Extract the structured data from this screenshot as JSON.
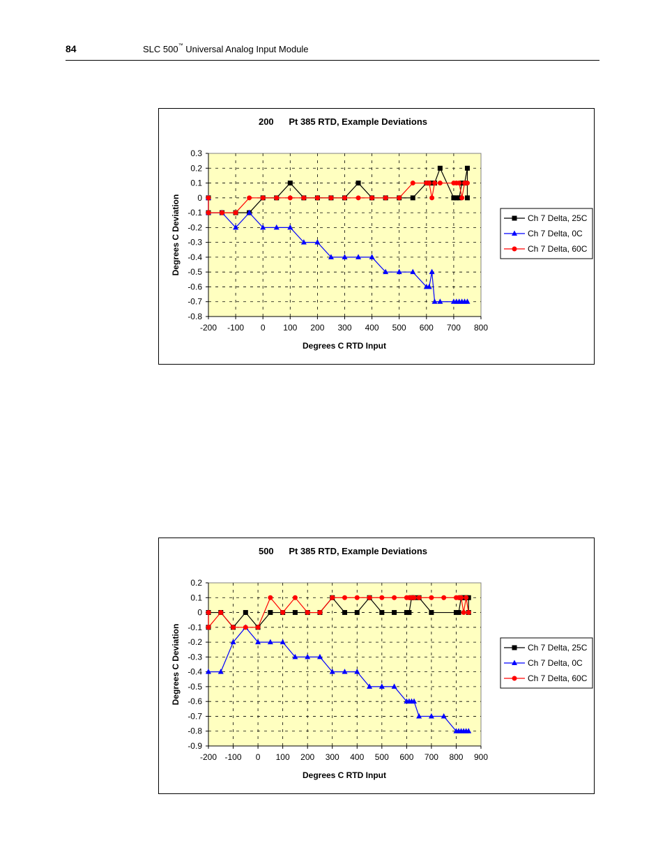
{
  "page": {
    "number": "84",
    "running_head": "SLC 500",
    "running_head_tm": "™",
    "running_head_rest": " Universal Analog Input Module"
  },
  "chart_data": [
    {
      "type": "line",
      "title": "200      Pt 385 RTD, Example Deviations",
      "xlabel": "Degrees C RTD Input",
      "ylabel": "Degrees C Deviation",
      "xlim": [
        -200,
        800
      ],
      "ylim": [
        -0.8,
        0.3
      ],
      "xticks": [
        -200,
        -100,
        0,
        100,
        200,
        300,
        400,
        500,
        600,
        700,
        800
      ],
      "yticks": [
        0.3,
        0.2,
        0.1,
        0,
        -0.1,
        -0.2,
        -0.3,
        -0.4,
        -0.5,
        -0.6,
        -0.7,
        -0.8
      ],
      "xtick_labels": [
        "-200",
        "-100",
        "0",
        "100",
        "200",
        "300",
        "400",
        "500",
        "600",
        "700",
        "800"
      ],
      "ytick_labels": [
        "0.3",
        "0.2",
        "0.1",
        "0",
        "-0.1",
        "-0.2",
        "-0.3",
        "-0.4",
        "-0.5",
        "-0.6",
        "-0.7",
        "-0.8"
      ],
      "grid": true,
      "legend_position": "right",
      "plot_background": "#ffffc0",
      "series": [
        {
          "name": "Ch 7 Delta, 25C",
          "color": "#000000",
          "marker": "square",
          "x": [
            -200,
            -200,
            -150,
            -100,
            -50,
            0,
            50,
            100,
            150,
            200,
            250,
            300,
            350,
            400,
            450,
            500,
            550,
            600,
            610,
            620,
            630,
            650,
            700,
            710,
            720,
            730,
            740,
            750,
            750
          ],
          "y": [
            0,
            -0.1,
            -0.1,
            -0.1,
            -0.1,
            0,
            0,
            0.1,
            0,
            0,
            0,
            0,
            0.1,
            0,
            0,
            0,
            0,
            0.1,
            0.1,
            0.1,
            0.1,
            0.2,
            0,
            0,
            0,
            0.1,
            0.1,
            0.2,
            0
          ]
        },
        {
          "name": "Ch 7 Delta, 0C",
          "color": "#0000ff",
          "marker": "triangle",
          "x": [
            -200,
            -200,
            -150,
            -100,
            -50,
            0,
            50,
            100,
            150,
            200,
            250,
            300,
            350,
            400,
            450,
            500,
            550,
            600,
            610,
            620,
            630,
            650,
            700,
            710,
            720,
            730,
            740,
            750
          ],
          "y": [
            0,
            -0.1,
            -0.1,
            -0.2,
            -0.1,
            -0.2,
            -0.2,
            -0.2,
            -0.3,
            -0.3,
            -0.4,
            -0.4,
            -0.4,
            -0.4,
            -0.5,
            -0.5,
            -0.5,
            -0.6,
            -0.6,
            -0.5,
            -0.7,
            -0.7,
            -0.7,
            -0.7,
            -0.7,
            -0.7,
            -0.7,
            -0.7
          ]
        },
        {
          "name": "Ch 7 Delta, 60C",
          "color": "#ff0000",
          "marker": "circle",
          "x": [
            -200,
            -200,
            -150,
            -100,
            -50,
            0,
            50,
            100,
            150,
            200,
            250,
            300,
            350,
            400,
            450,
            500,
            550,
            600,
            610,
            620,
            630,
            650,
            700,
            710,
            720,
            730,
            740,
            750
          ],
          "y": [
            0,
            -0.1,
            -0.1,
            -0.1,
            0,
            0,
            0,
            0,
            0,
            0,
            0,
            0,
            0,
            0,
            0,
            0,
            0.1,
            0.1,
            0.1,
            0,
            0.1,
            0.1,
            0.1,
            0.1,
            0.1,
            0,
            0.1,
            0.1
          ]
        }
      ]
    },
    {
      "type": "line",
      "title": "500      Pt 385 RTD, Example Deviations",
      "xlabel": "Degrees C RTD Input",
      "ylabel": "Degrees C Deviation",
      "xlim": [
        -200,
        900
      ],
      "ylim": [
        -0.9,
        0.2
      ],
      "xticks": [
        -200,
        -100,
        0,
        100,
        200,
        300,
        400,
        500,
        600,
        700,
        800,
        900
      ],
      "yticks": [
        0.2,
        0.1,
        0,
        -0.1,
        -0.2,
        -0.3,
        -0.4,
        -0.5,
        -0.6,
        -0.7,
        -0.8,
        -0.9
      ],
      "xtick_labels": [
        "-200",
        "-100",
        "0",
        "100",
        "200",
        "300",
        "400",
        "500",
        "600",
        "700",
        "800",
        "900"
      ],
      "ytick_labels": [
        "0.2",
        "0.1",
        "0",
        "-0.1",
        "-0.2",
        "-0.3",
        "-0.4",
        "-0.5",
        "-0.6",
        "-0.7",
        "-0.8",
        "-0.9"
      ],
      "grid": true,
      "legend_position": "right",
      "plot_background": "#ffffc0",
      "series": [
        {
          "name": "Ch 7 Delta, 25C",
          "color": "#000000",
          "marker": "square",
          "x": [
            -200,
            -200,
            -150,
            -100,
            -50,
            0,
            50,
            100,
            150,
            200,
            250,
            300,
            350,
            400,
            450,
            500,
            550,
            600,
            610,
            620,
            630,
            650,
            700,
            800,
            810,
            820,
            830,
            840,
            850,
            850
          ],
          "y": [
            -0.1,
            0,
            0,
            -0.1,
            0,
            -0.1,
            0,
            0,
            0,
            0,
            0,
            0.1,
            0,
            0,
            0.1,
            0,
            0,
            0,
            0,
            0.1,
            0.1,
            0.1,
            0,
            0,
            0,
            0.1,
            0.1,
            0.1,
            0.1,
            0
          ]
        },
        {
          "name": "Ch 7 Delta, 0C",
          "color": "#0000ff",
          "marker": "triangle",
          "x": [
            -200,
            -150,
            -100,
            -50,
            0,
            50,
            100,
            150,
            200,
            250,
            300,
            350,
            400,
            450,
            500,
            550,
            600,
            610,
            620,
            630,
            650,
            700,
            750,
            800,
            810,
            820,
            830,
            840,
            850
          ],
          "y": [
            -0.4,
            -0.4,
            -0.2,
            -0.1,
            -0.2,
            -0.2,
            -0.2,
            -0.3,
            -0.3,
            -0.3,
            -0.4,
            -0.4,
            -0.4,
            -0.5,
            -0.5,
            -0.5,
            -0.6,
            -0.6,
            -0.6,
            -0.6,
            -0.7,
            -0.7,
            -0.7,
            -0.8,
            -0.8,
            -0.8,
            -0.8,
            -0.8,
            -0.8
          ]
        },
        {
          "name": "Ch 7 Delta, 60C",
          "color": "#ff0000",
          "marker": "circle",
          "x": [
            -200,
            -200,
            -150,
            -100,
            -50,
            0,
            50,
            100,
            150,
            200,
            250,
            300,
            350,
            400,
            450,
            500,
            550,
            600,
            610,
            620,
            630,
            650,
            700,
            750,
            800,
            810,
            820,
            830,
            840,
            850
          ],
          "y": [
            0,
            -0.1,
            0,
            -0.1,
            -0.1,
            -0.1,
            0.1,
            0,
            0.1,
            0,
            0,
            0.1,
            0.1,
            0.1,
            0.1,
            0.1,
            0.1,
            0.1,
            0.1,
            0.1,
            0.1,
            0.1,
            0.1,
            0.1,
            0.1,
            0.1,
            0.1,
            0,
            0.1,
            0
          ]
        }
      ]
    }
  ]
}
